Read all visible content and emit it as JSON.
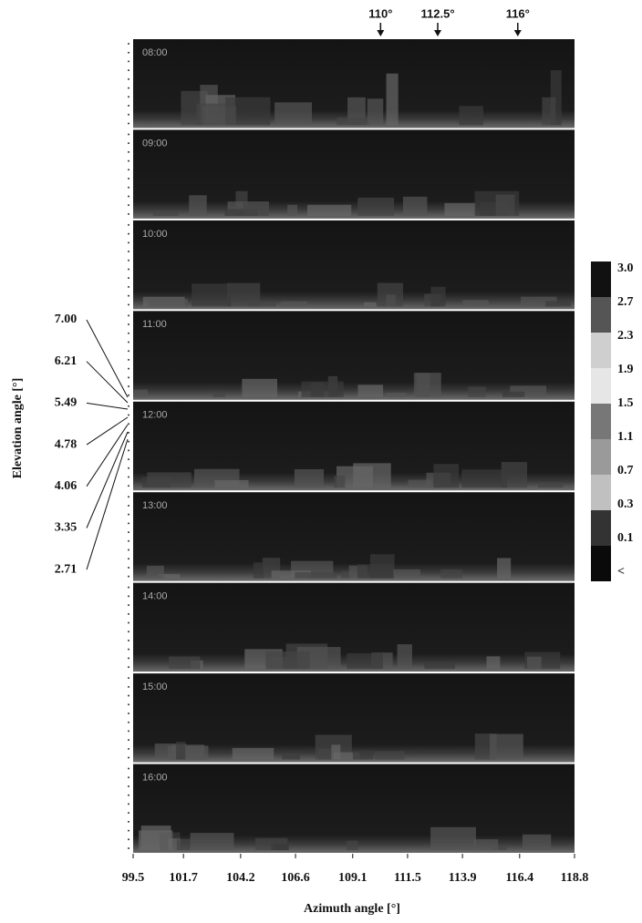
{
  "chart_data": {
    "type": "heatmap",
    "panels": [
      "08:00",
      "09:00",
      "10:00",
      "11:00",
      "12:00",
      "13:00",
      "14:00",
      "15:00",
      "16:00"
    ],
    "xlabel": "Azimuth angle [°]",
    "ylabel": "Elevation angle [°]",
    "xlim": [
      99.5,
      118.8
    ],
    "xticks": [
      99.5,
      101.7,
      104.2,
      106.6,
      109.1,
      111.5,
      113.9,
      116.4,
      118.8
    ],
    "markers": [
      {
        "value": 110,
        "label": "110°"
      },
      {
        "value": 112.5,
        "label": "112.5°"
      },
      {
        "value": 116,
        "label": "116°"
      }
    ],
    "elevation_labels": [
      "7.00",
      "6.21",
      "5.49",
      "4.78",
      "4.06",
      "3.35",
      "2.71"
    ],
    "colorbar_labels": [
      "3.0",
      "2.7",
      "2.3",
      "1.9",
      "1.5",
      "1.1",
      "0.7",
      "0.3",
      "0.1",
      "<"
    ]
  }
}
